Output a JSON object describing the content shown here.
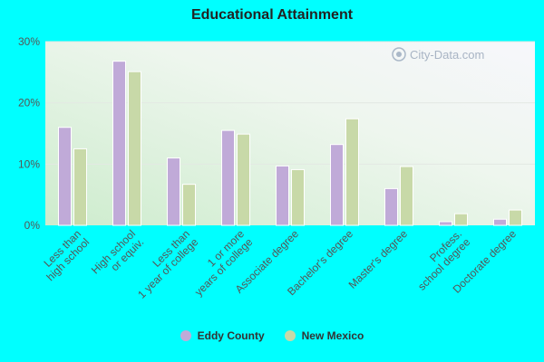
{
  "chart_data": {
    "type": "bar",
    "title": "Educational Attainment",
    "categories": [
      [
        "Less than",
        "high school"
      ],
      [
        "High school",
        "or equiv."
      ],
      [
        "Less than",
        "1 year of college"
      ],
      [
        "1 or more",
        "years of college"
      ],
      [
        "Associate degree"
      ],
      [
        "Bachelor's degree"
      ],
      [
        "Master's degree"
      ],
      [
        "Profess.",
        "school degree"
      ],
      [
        "Doctorate degree"
      ]
    ],
    "series": [
      {
        "name": "Eddy County",
        "color": "#c0aad8",
        "values": [
          16.0,
          26.8,
          11.0,
          15.5,
          9.7,
          13.2,
          6.0,
          0.6,
          1.0
        ]
      },
      {
        "name": "New Mexico",
        "color": "#c8d9a8",
        "values": [
          12.5,
          25.1,
          6.7,
          14.9,
          9.1,
          17.4,
          9.6,
          1.9,
          2.5
        ]
      }
    ],
    "yticks": [
      "0%",
      "10%",
      "20%",
      "30%"
    ],
    "ylim": [
      0,
      30
    ],
    "grid": true,
    "legend": "bottom"
  },
  "watermark": "City-Data.com"
}
